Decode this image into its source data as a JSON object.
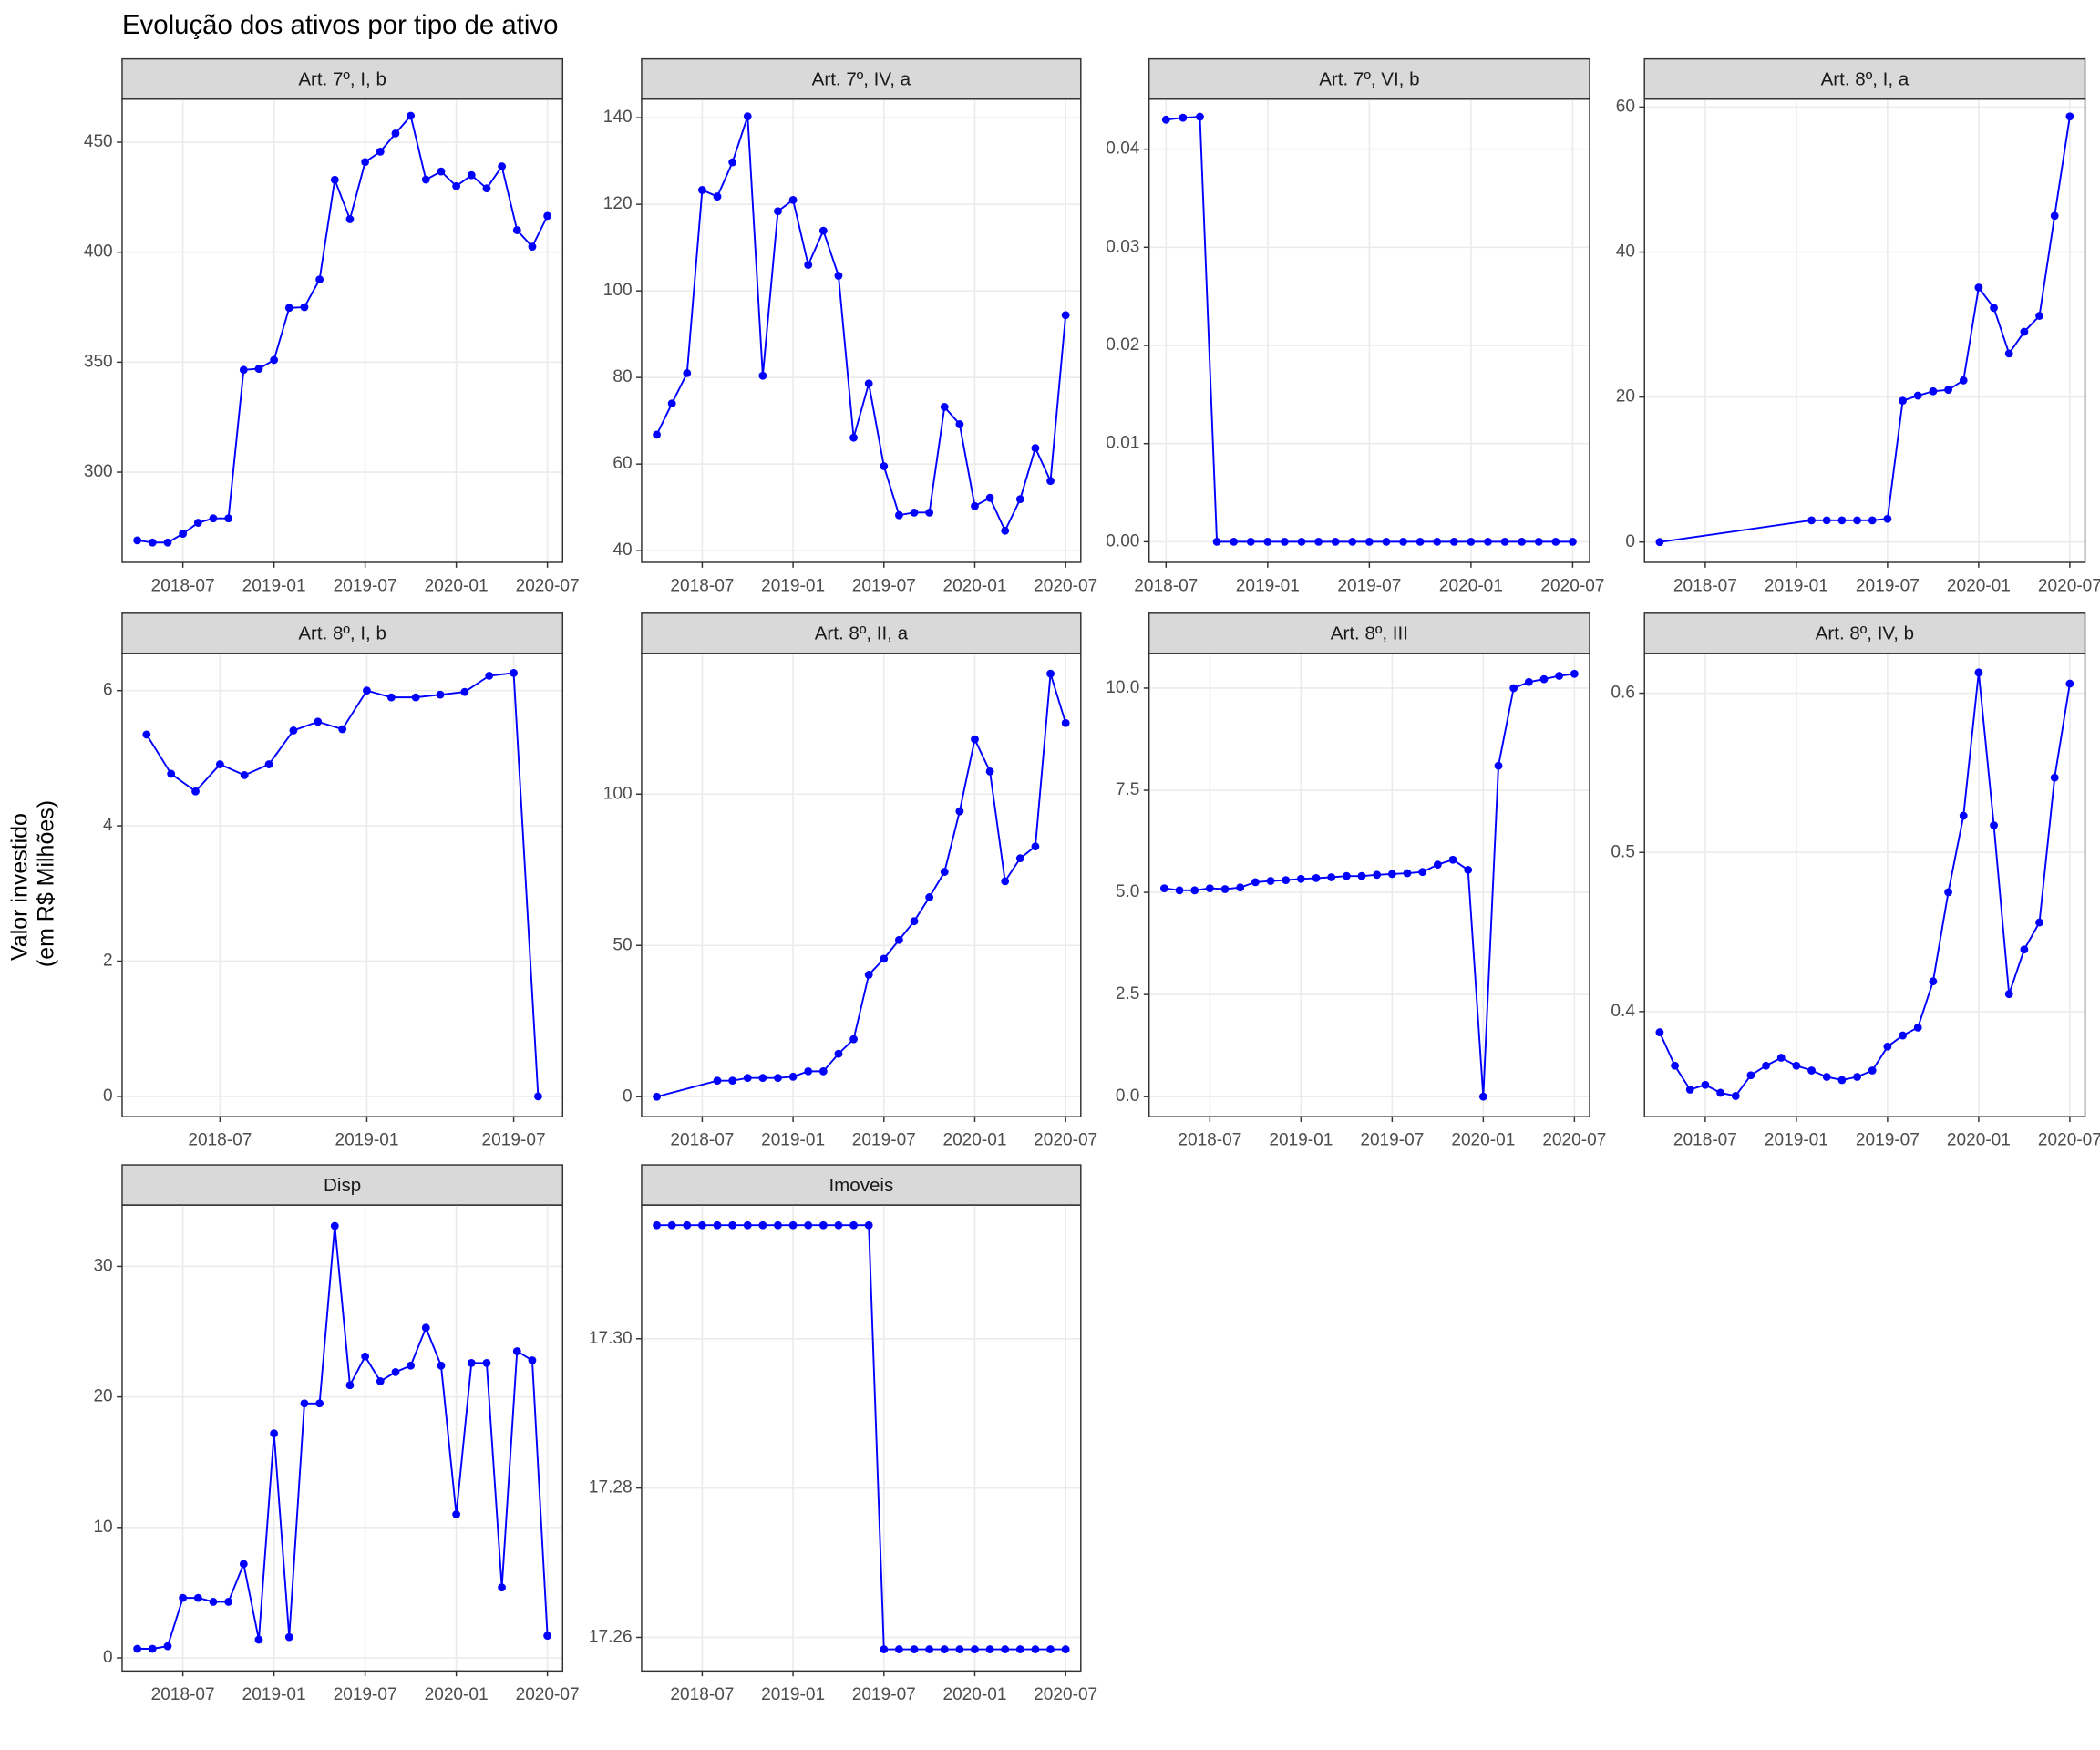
{
  "title": "Evolução dos ativos por tipo de ativo",
  "y_label": [
    "Valor investido",
    "(em R$ Milhões)"
  ],
  "chart_data": [
    {
      "type": "line",
      "title": "Art. 7º, I, b",
      "color": "#0000ff",
      "grid": true,
      "x": [
        "2018-04",
        "2018-05",
        "2018-06",
        "2018-07",
        "2018-08",
        "2018-09",
        "2018-10",
        "2018-11",
        "2018-12",
        "2019-01",
        "2019-02",
        "2019-03",
        "2019-04",
        "2019-05",
        "2019-06",
        "2019-07",
        "2019-08",
        "2019-09",
        "2019-10",
        "2019-11",
        "2019-12",
        "2020-01",
        "2020-02",
        "2020-03",
        "2020-04",
        "2020-05",
        "2020-06",
        "2020-07"
      ],
      "values": [
        269,
        268,
        268,
        272,
        277,
        279,
        279,
        346.5,
        347,
        351,
        374.7,
        375,
        387.6,
        432.9,
        415,
        441,
        445.7,
        454,
        462,
        433,
        436.7,
        430,
        435,
        429,
        439,
        410,
        402.5,
        416.5
      ],
      "xlim": [
        "2018-03",
        "2020-08"
      ],
      "xticks": [
        "2018-07",
        "2019-01",
        "2019-07",
        "2020-01",
        "2020-07"
      ],
      "ylim": [
        259,
        469.6
      ],
      "yticks": [
        300,
        350,
        400,
        450
      ]
    },
    {
      "type": "line",
      "title": "Art. 7º, IV, a",
      "color": "#0000ff",
      "grid": true,
      "x": [
        "2018-04",
        "2018-05",
        "2018-06",
        "2018-07",
        "2018-08",
        "2018-09",
        "2018-10",
        "2018-11",
        "2018-12",
        "2019-01",
        "2019-02",
        "2019-03",
        "2019-04",
        "2019-05",
        "2019-06",
        "2019-07",
        "2019-08",
        "2019-09",
        "2019-10",
        "2019-11",
        "2019-12",
        "2020-01",
        "2020-02",
        "2020-03",
        "2020-04",
        "2020-05",
        "2020-06",
        "2020-07"
      ],
      "values": [
        66.8,
        74,
        81,
        123.3,
        121.8,
        129.7,
        140.3,
        80.4,
        118.4,
        121,
        106,
        113.9,
        103.5,
        66.1,
        78.6,
        59.5,
        48.2,
        48.8,
        48.8,
        73.2,
        69.2,
        50.3,
        52.2,
        44.6,
        51.9,
        63.7,
        56.1,
        94.4
      ],
      "xlim": [
        "2018-03",
        "2020-08"
      ],
      "xticks": [
        "2018-07",
        "2019-01",
        "2019-07",
        "2020-01",
        "2020-07"
      ],
      "ylim": [
        37.3,
        144.3
      ],
      "yticks": [
        40,
        60,
        80,
        100,
        120,
        140
      ]
    },
    {
      "type": "line",
      "title": "Art. 7º, VI, b",
      "color": "#0000ff",
      "grid": true,
      "x": [
        "2018-07",
        "2018-08",
        "2018-09",
        "2018-10",
        "2018-11",
        "2018-12",
        "2019-01",
        "2019-02",
        "2019-03",
        "2019-04",
        "2019-05",
        "2019-06",
        "2019-07",
        "2019-08",
        "2019-09",
        "2019-10",
        "2019-11",
        "2019-12",
        "2020-01",
        "2020-02",
        "2020-03",
        "2020-04",
        "2020-05",
        "2020-06",
        "2020-07"
      ],
      "values": [
        0.043,
        0.0432,
        0.0433,
        0,
        0,
        0,
        0,
        0,
        0,
        0,
        0,
        0,
        0,
        0,
        0,
        0,
        0,
        0,
        0,
        0,
        0,
        0,
        0,
        0,
        0
      ],
      "xlim": [
        "2018-06",
        "2020-08"
      ],
      "xticks": [
        "2018-07",
        "2019-01",
        "2019-07",
        "2020-01",
        "2020-07"
      ],
      "ylim": [
        -0.0021,
        0.0451
      ],
      "yticks": [
        {
          "value": 0,
          "label": "0.00"
        },
        {
          "value": 0.01,
          "label": "0.01"
        },
        {
          "value": 0.02,
          "label": "0.02"
        },
        {
          "value": 0.03,
          "label": "0.03"
        },
        {
          "value": 0.04,
          "label": "0.04"
        }
      ]
    },
    {
      "type": "line",
      "title": "Art. 8º, I, a",
      "color": "#0000ff",
      "grid": true,
      "x": [
        "2018-04",
        "2019-02",
        "2019-03",
        "2019-04",
        "2019-05",
        "2019-06",
        "2019-07",
        "2019-08",
        "2019-09",
        "2019-10",
        "2019-11",
        "2019-12",
        "2020-01",
        "2020-02",
        "2020-03",
        "2020-04",
        "2020-05",
        "2020-06",
        "2020-07"
      ],
      "values": [
        0,
        3,
        3,
        3,
        3,
        3,
        3.2,
        19.5,
        20.2,
        20.8,
        21,
        22.3,
        35.1,
        32.3,
        26,
        29,
        31.2,
        45,
        58.7
      ],
      "xlim": [
        "2018-03",
        "2020-08"
      ],
      "xticks": [
        "2018-07",
        "2019-01",
        "2019-07",
        "2020-01",
        "2020-07"
      ],
      "ylim": [
        -2.8,
        61.1
      ],
      "yticks": [
        0,
        20,
        40,
        60
      ]
    },
    {
      "type": "line",
      "title": "Art. 8º, I, b",
      "color": "#0000ff",
      "grid": true,
      "x": [
        "2018-04",
        "2018-05",
        "2018-06",
        "2018-07",
        "2018-08",
        "2018-09",
        "2018-10",
        "2018-11",
        "2018-12",
        "2019-01",
        "2019-02",
        "2019-03",
        "2019-04",
        "2019-05",
        "2019-06",
        "2019-07",
        "2019-08"
      ],
      "values": [
        5.35,
        4.77,
        4.51,
        4.91,
        4.75,
        4.91,
        5.41,
        5.54,
        5.43,
        6.0,
        5.9,
        5.9,
        5.94,
        5.98,
        6.22,
        6.26,
        0
      ],
      "xlim": [
        "2018-03",
        "2019-09"
      ],
      "xticks": [
        "2018-07",
        "2019-01",
        "2019-07"
      ],
      "ylim": [
        -0.3,
        6.55
      ],
      "yticks": [
        0,
        2,
        4,
        6
      ]
    },
    {
      "type": "line",
      "title": "Art. 8º, II, a",
      "color": "#0000ff",
      "grid": true,
      "x": [
        "2018-04",
        "2018-08",
        "2018-09",
        "2018-10",
        "2018-11",
        "2018-12",
        "2019-01",
        "2019-02",
        "2019-03",
        "2019-04",
        "2019-05",
        "2019-06",
        "2019-07",
        "2019-08",
        "2019-09",
        "2019-10",
        "2019-11",
        "2019-12",
        "2020-01",
        "2020-02",
        "2020-03",
        "2020-04",
        "2020-05",
        "2020-06",
        "2020-07"
      ],
      "values": [
        0,
        5.3,
        5.3,
        6.2,
        6.2,
        6.2,
        6.6,
        8.4,
        8.4,
        14.2,
        19,
        40.3,
        45.6,
        51.8,
        58,
        65.9,
        74.3,
        94.3,
        118.1,
        107.5,
        71.2,
        78.8,
        82.7,
        139.8,
        123.5
      ],
      "xlim": [
        "2018-03",
        "2020-08"
      ],
      "xticks": [
        "2018-07",
        "2019-01",
        "2019-07",
        "2020-01",
        "2020-07"
      ],
      "ylim": [
        -6.6,
        146.5
      ],
      "yticks": [
        0,
        50,
        100
      ]
    },
    {
      "type": "line",
      "title": "Art. 8º, III",
      "color": "#0000ff",
      "grid": true,
      "x": [
        "2018-04",
        "2018-05",
        "2018-06",
        "2018-07",
        "2018-08",
        "2018-09",
        "2018-10",
        "2018-11",
        "2018-12",
        "2019-01",
        "2019-02",
        "2019-03",
        "2019-04",
        "2019-05",
        "2019-06",
        "2019-07",
        "2019-08",
        "2019-09",
        "2019-10",
        "2019-11",
        "2019-12",
        "2020-01",
        "2020-02",
        "2020-03",
        "2020-04",
        "2020-05",
        "2020-06",
        "2020-07"
      ],
      "values": [
        5.1,
        5.05,
        5.05,
        5.1,
        5.08,
        5.12,
        5.25,
        5.28,
        5.3,
        5.33,
        5.35,
        5.37,
        5.4,
        5.4,
        5.43,
        5.45,
        5.47,
        5.5,
        5.68,
        5.8,
        5.55,
        0,
        8.1,
        10.0,
        10.15,
        10.22,
        10.3,
        10.35
      ],
      "xlim": [
        "2018-03",
        "2020-08"
      ],
      "xticks": [
        "2018-07",
        "2019-01",
        "2019-07",
        "2020-01",
        "2020-07"
      ],
      "ylim": [
        -0.49,
        10.85
      ],
      "yticks": [
        {
          "value": 0,
          "label": "0.0"
        },
        2.5,
        {
          "value": 5,
          "label": "5.0"
        },
        7.5,
        {
          "value": 10,
          "label": "10.0"
        }
      ]
    },
    {
      "type": "line",
      "title": "Art. 8º, IV, b",
      "color": "#0000ff",
      "grid": true,
      "x": [
        "2018-04",
        "2018-05",
        "2018-06",
        "2018-07",
        "2018-08",
        "2018-09",
        "2018-10",
        "2018-11",
        "2018-12",
        "2019-01",
        "2019-02",
        "2019-03",
        "2019-04",
        "2019-05",
        "2019-06",
        "2019-07",
        "2019-08",
        "2019-09",
        "2019-10",
        "2019-11",
        "2019-12",
        "2020-01",
        "2020-02",
        "2020-03",
        "2020-04",
        "2020-05",
        "2020-06",
        "2020-07"
      ],
      "values": [
        0.387,
        0.366,
        0.351,
        0.354,
        0.349,
        0.347,
        0.36,
        0.366,
        0.371,
        0.366,
        0.363,
        0.359,
        0.357,
        0.359,
        0.363,
        0.378,
        0.385,
        0.39,
        0.419,
        0.475,
        0.523,
        0.613,
        0.517,
        0.411,
        0.439,
        0.456,
        0.547,
        0.606
      ],
      "xlim": [
        "2018-03",
        "2020-08"
      ],
      "xticks": [
        "2018-07",
        "2019-01",
        "2019-07",
        "2020-01",
        "2020-07"
      ],
      "ylim": [
        0.334,
        0.625
      ],
      "yticks": [
        0.4,
        0.5,
        0.6
      ]
    },
    {
      "type": "line",
      "title": "Disp",
      "color": "#0000ff",
      "grid": true,
      "x": [
        "2018-04",
        "2018-05",
        "2018-06",
        "2018-07",
        "2018-08",
        "2018-09",
        "2018-10",
        "2018-11",
        "2018-12",
        "2019-01",
        "2019-02",
        "2019-03",
        "2019-04",
        "2019-05",
        "2019-06",
        "2019-07",
        "2019-08",
        "2019-09",
        "2019-10",
        "2019-11",
        "2019-12",
        "2020-01",
        "2020-02",
        "2020-03",
        "2020-04",
        "2020-05",
        "2020-06",
        "2020-07"
      ],
      "values": [
        0.7,
        0.7,
        0.9,
        4.6,
        4.6,
        4.3,
        4.3,
        7.2,
        1.4,
        17.2,
        1.6,
        19.5,
        19.5,
        33.1,
        20.9,
        23.1,
        21.2,
        21.9,
        22.4,
        25.3,
        22.4,
        11.0,
        22.6,
        22.6,
        5.4,
        23.5,
        22.8,
        1.7
      ],
      "xlim": [
        "2018-03",
        "2020-08"
      ],
      "xticks": [
        "2018-07",
        "2019-01",
        "2019-07",
        "2020-01",
        "2020-07"
      ],
      "ylim": [
        -1.0,
        34.7
      ],
      "yticks": [
        0,
        10,
        20,
        30
      ]
    },
    {
      "type": "line",
      "title": "Imoveis",
      "color": "#0000ff",
      "grid": true,
      "x": [
        "2018-04",
        "2018-05",
        "2018-06",
        "2018-07",
        "2018-08",
        "2018-09",
        "2018-10",
        "2018-11",
        "2018-12",
        "2019-01",
        "2019-02",
        "2019-03",
        "2019-04",
        "2019-05",
        "2019-06",
        "2019-07",
        "2019-08",
        "2019-09",
        "2019-10",
        "2019-11",
        "2019-12",
        "2020-01",
        "2020-02",
        "2020-03",
        "2020-04",
        "2020-05",
        "2020-06",
        "2020-07"
      ],
      "values": [
        17.3152,
        17.3152,
        17.3152,
        17.3152,
        17.3152,
        17.3152,
        17.3152,
        17.3152,
        17.3152,
        17.3152,
        17.3152,
        17.3152,
        17.3152,
        17.3152,
        17.3152,
        17.2584,
        17.2584,
        17.2584,
        17.2584,
        17.2584,
        17.2584,
        17.2584,
        17.2584,
        17.2584,
        17.2584,
        17.2584,
        17.2584,
        17.2584
      ],
      "xlim": [
        "2018-03",
        "2020-08"
      ],
      "xticks": [
        "2018-07",
        "2019-01",
        "2019-07",
        "2020-01",
        "2020-07"
      ],
      "ylim": [
        17.2555,
        17.3179
      ],
      "yticks": [
        17.26,
        17.28,
        {
          "value": 17.3,
          "label": "17.30"
        }
      ]
    }
  ]
}
